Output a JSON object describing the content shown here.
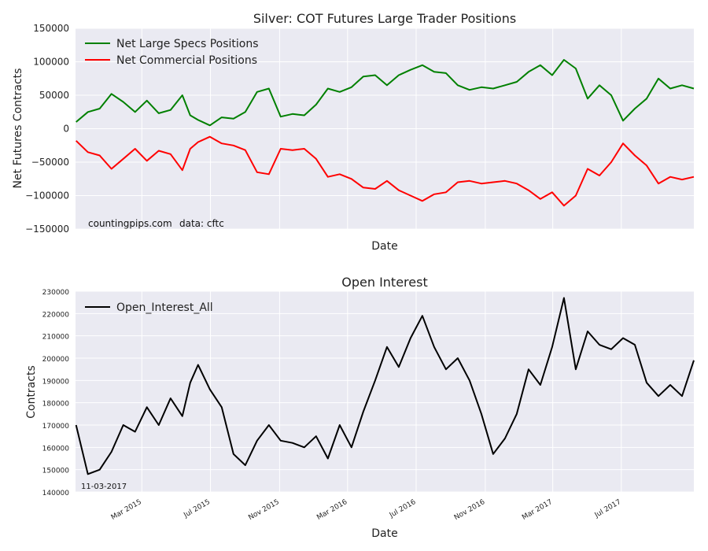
{
  "chart_data": [
    {
      "type": "line",
      "title": "Silver: COT Futures Large Trader Positions",
      "xlabel": "Date",
      "ylabel": "Net Futures Contracts",
      "ylim": [
        -150000,
        150000
      ],
      "yticks": [
        "150000",
        "100000",
        "50000",
        "0",
        "−50000",
        "−100000",
        "−150000"
      ],
      "xlim": [
        "2014-11-03",
        "2017-11-07"
      ],
      "grid": true,
      "legend_position": "top-left",
      "annotations": [
        "countingpips.com",
        "data: cftc"
      ],
      "series": [
        {
          "name": "Net Large Specs Positions",
          "color": "#008000",
          "x": [
            "2014-11-04",
            "2014-11-25",
            "2014-12-16",
            "2015-01-06",
            "2015-01-27",
            "2015-02-17",
            "2015-03-10",
            "2015-03-31",
            "2015-04-21",
            "2015-05-12",
            "2015-05-26",
            "2015-06-09",
            "2015-06-30",
            "2015-07-21",
            "2015-08-11",
            "2015-09-01",
            "2015-09-22",
            "2015-10-13",
            "2015-11-03",
            "2015-11-24",
            "2015-12-15",
            "2016-01-05",
            "2016-01-26",
            "2016-02-16",
            "2016-03-08",
            "2016-03-29",
            "2016-04-19",
            "2016-05-10",
            "2016-05-31",
            "2016-06-21",
            "2016-07-12",
            "2016-08-02",
            "2016-08-23",
            "2016-09-13",
            "2016-10-04",
            "2016-10-25",
            "2016-11-15",
            "2016-12-06",
            "2016-12-27",
            "2017-01-17",
            "2017-02-07",
            "2017-02-28",
            "2017-03-21",
            "2017-04-11",
            "2017-05-02",
            "2017-05-23",
            "2017-06-13",
            "2017-07-04",
            "2017-07-25",
            "2017-08-15",
            "2017-09-05",
            "2017-09-26",
            "2017-10-17",
            "2017-11-07"
          ],
          "values": [
            10000,
            25000,
            30000,
            52000,
            40000,
            25000,
            42000,
            23000,
            28000,
            50000,
            20000,
            13000,
            5000,
            17000,
            15000,
            25000,
            55000,
            60000,
            18000,
            22000,
            20000,
            36000,
            60000,
            55000,
            62000,
            78000,
            80000,
            65000,
            80000,
            88000,
            95000,
            85000,
            83000,
            65000,
            58000,
            62000,
            60000,
            65000,
            70000,
            85000,
            95000,
            80000,
            103000,
            90000,
            45000,
            65000,
            50000,
            12000,
            30000,
            45000,
            75000,
            60000,
            65000,
            60000
          ]
        },
        {
          "name": "Net Commercial Positions",
          "color": "#ff0000",
          "x": [
            "2014-11-04",
            "2014-11-25",
            "2014-12-16",
            "2015-01-06",
            "2015-01-27",
            "2015-02-17",
            "2015-03-10",
            "2015-03-31",
            "2015-04-21",
            "2015-05-12",
            "2015-05-26",
            "2015-06-09",
            "2015-06-30",
            "2015-07-21",
            "2015-08-11",
            "2015-09-01",
            "2015-09-22",
            "2015-10-13",
            "2015-11-03",
            "2015-11-24",
            "2015-12-15",
            "2016-01-05",
            "2016-01-26",
            "2016-02-16",
            "2016-03-08",
            "2016-03-29",
            "2016-04-19",
            "2016-05-10",
            "2016-05-31",
            "2016-06-21",
            "2016-07-12",
            "2016-08-02",
            "2016-08-23",
            "2016-09-13",
            "2016-10-04",
            "2016-10-25",
            "2016-11-15",
            "2016-12-06",
            "2016-12-27",
            "2017-01-17",
            "2017-02-07",
            "2017-02-28",
            "2017-03-21",
            "2017-04-11",
            "2017-05-02",
            "2017-05-23",
            "2017-06-13",
            "2017-07-04",
            "2017-07-25",
            "2017-08-15",
            "2017-09-05",
            "2017-09-26",
            "2017-10-17",
            "2017-11-07"
          ],
          "values": [
            -18000,
            -35000,
            -40000,
            -60000,
            -45000,
            -30000,
            -48000,
            -33000,
            -38000,
            -62000,
            -30000,
            -20000,
            -12000,
            -22000,
            -25000,
            -32000,
            -65000,
            -68000,
            -30000,
            -32000,
            -30000,
            -45000,
            -72000,
            -68000,
            -75000,
            -88000,
            -90000,
            -78000,
            -92000,
            -100000,
            -108000,
            -98000,
            -95000,
            -80000,
            -78000,
            -82000,
            -80000,
            -78000,
            -82000,
            -92000,
            -105000,
            -95000,
            -115000,
            -100000,
            -60000,
            -70000,
            -50000,
            -22000,
            -40000,
            -55000,
            -82000,
            -72000,
            -76000,
            -72000
          ]
        }
      ]
    },
    {
      "type": "line",
      "title": "Open Interest",
      "xlabel": "Date",
      "ylabel": "Contracts",
      "ylim": [
        140000,
        230000
      ],
      "yticks": [
        "230000",
        "220000",
        "210000",
        "200000",
        "190000",
        "180000",
        "170000",
        "160000",
        "150000",
        "140000"
      ],
      "xlim": [
        "2014-11-03",
        "2017-11-07"
      ],
      "xticks": [
        "Mar 2015",
        "Jul 2015",
        "Nov 2015",
        "Mar 2016",
        "Jul 2016",
        "Nov 2016",
        "Mar 2017",
        "Jul 2017"
      ],
      "grid": true,
      "legend_position": "top-left",
      "annotations": [
        "11-03-2017"
      ],
      "series": [
        {
          "name": "Open_Interest_All",
          "color": "#000000",
          "x": [
            "2014-11-04",
            "2014-11-25",
            "2014-12-16",
            "2015-01-06",
            "2015-01-27",
            "2015-02-17",
            "2015-03-10",
            "2015-03-31",
            "2015-04-21",
            "2015-05-12",
            "2015-05-26",
            "2015-06-09",
            "2015-06-30",
            "2015-07-21",
            "2015-08-11",
            "2015-09-01",
            "2015-09-22",
            "2015-10-13",
            "2015-11-03",
            "2015-11-24",
            "2015-12-15",
            "2016-01-05",
            "2016-01-26",
            "2016-02-16",
            "2016-03-08",
            "2016-03-29",
            "2016-04-19",
            "2016-05-10",
            "2016-05-31",
            "2016-06-21",
            "2016-07-12",
            "2016-08-02",
            "2016-08-23",
            "2016-09-13",
            "2016-10-04",
            "2016-10-25",
            "2016-11-15",
            "2016-12-06",
            "2016-12-27",
            "2017-01-17",
            "2017-02-07",
            "2017-02-28",
            "2017-03-21",
            "2017-04-11",
            "2017-05-02",
            "2017-05-23",
            "2017-06-13",
            "2017-07-04",
            "2017-07-25",
            "2017-08-15",
            "2017-09-05",
            "2017-09-26",
            "2017-10-17",
            "2017-11-07"
          ],
          "values": [
            170000,
            148000,
            150000,
            158000,
            170000,
            167000,
            178000,
            170000,
            182000,
            174000,
            189000,
            197000,
            186000,
            178000,
            157000,
            152000,
            163000,
            170000,
            163000,
            162000,
            160000,
            165000,
            155000,
            170000,
            160000,
            176000,
            190000,
            205000,
            196000,
            209000,
            219000,
            205000,
            195000,
            200000,
            190000,
            175000,
            157000,
            164000,
            175000,
            195000,
            188000,
            205000,
            227000,
            195000,
            212000,
            206000,
            204000,
            209000,
            206000,
            189000,
            183000,
            188000,
            183000,
            199000
          ]
        }
      ]
    }
  ]
}
